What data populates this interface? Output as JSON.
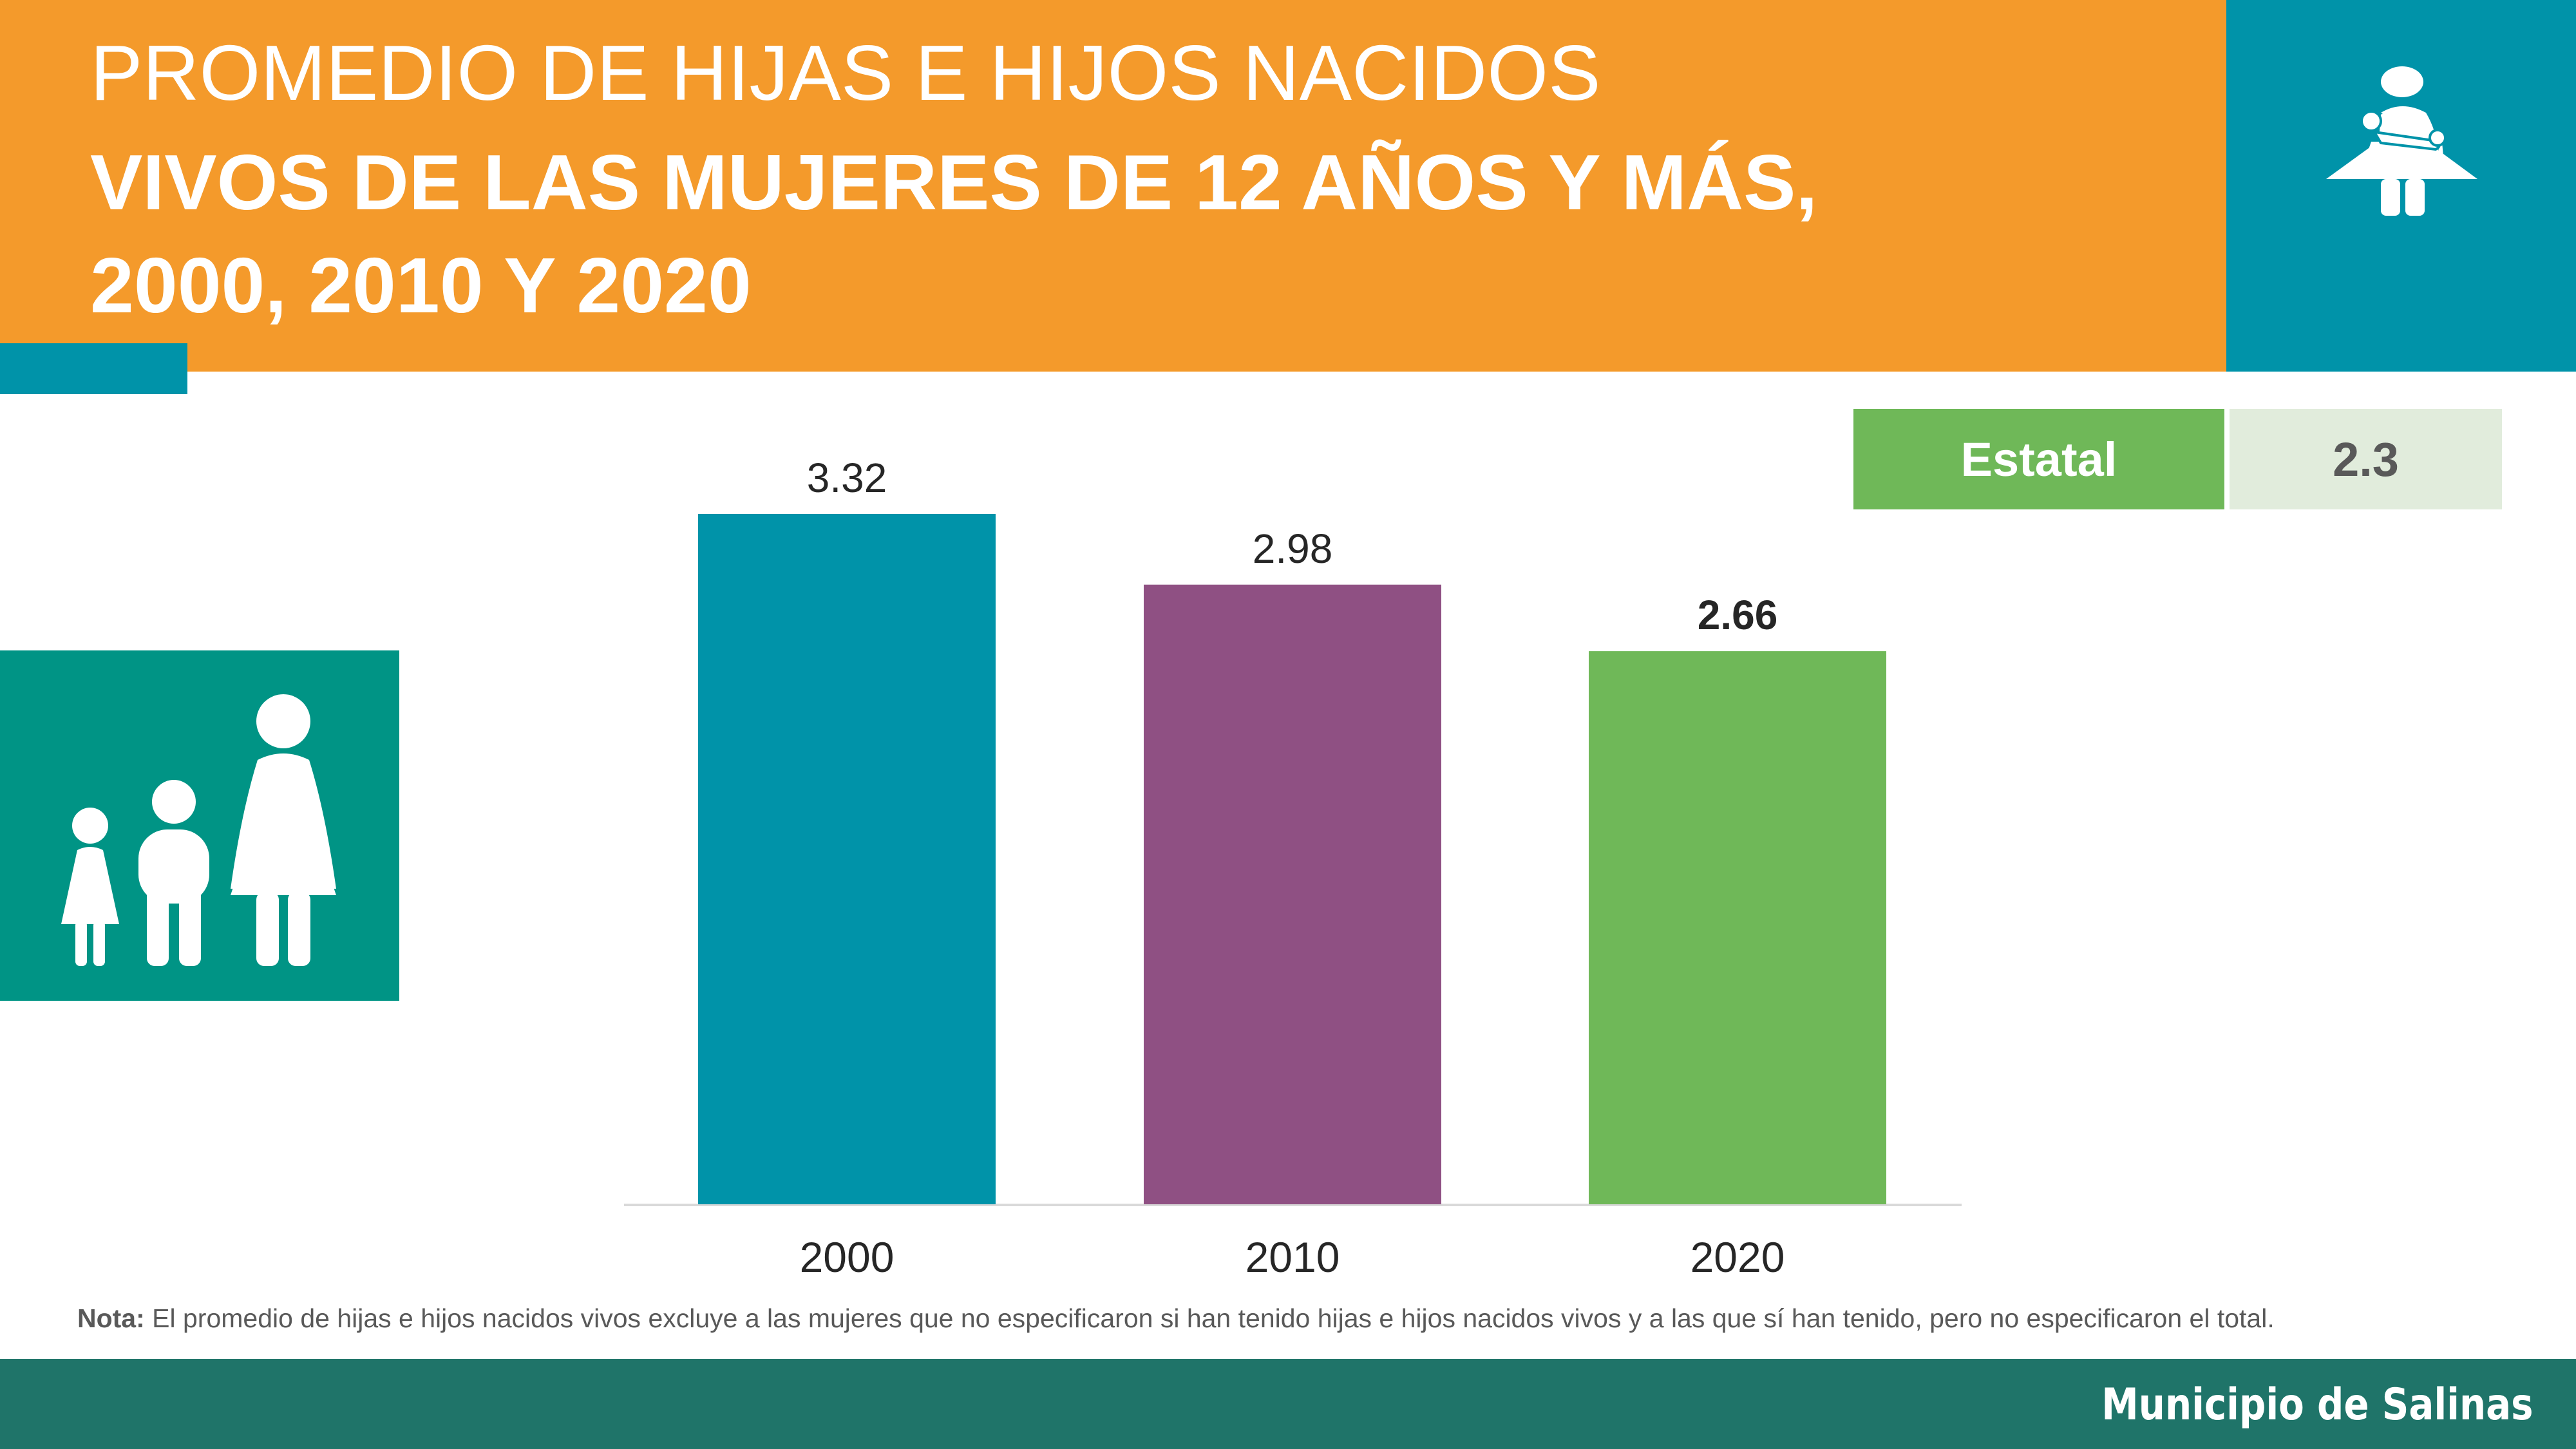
{
  "header": {
    "title_line1": "PROMEDIO DE HIJAS E HIJOS NACIDOS",
    "title_line2": "VIVOS DE LAS MUJERES DE 12 AÑOS  Y MÁS,",
    "title_line3": "2000, 2010 Y 2020"
  },
  "estatal": {
    "label": "Estatal",
    "value": "2.3"
  },
  "icons": {
    "top_right": "mother-holding-baby-icon",
    "left": "family-icon"
  },
  "colors": {
    "orange": "#f49a2b",
    "teal": "#0093a9",
    "purple": "#8f5083",
    "green": "#6fb858",
    "footer": "#1f7469"
  },
  "chart_data": {
    "type": "bar",
    "categories": [
      "2000",
      "2010",
      "2020"
    ],
    "values": [
      3.32,
      2.98,
      2.66
    ],
    "labels": [
      "3.32",
      "2.98",
      "2.66"
    ],
    "bar_colors": [
      "#0093a9",
      "#8f5083",
      "#6fb858"
    ],
    "ylim": [
      0,
      3.32
    ],
    "grid": false,
    "title": "",
    "xlabel": "",
    "ylabel": ""
  },
  "note": {
    "prefix": "Nota:",
    "text": " El promedio de hijas e hijos nacidos vivos excluye a las mujeres que no especificaron si han tenido hijas e hijos nacidos vivos y a las que sí han tenido, pero no especificaron el total."
  },
  "footer": {
    "text": "Municipio de Salinas"
  }
}
